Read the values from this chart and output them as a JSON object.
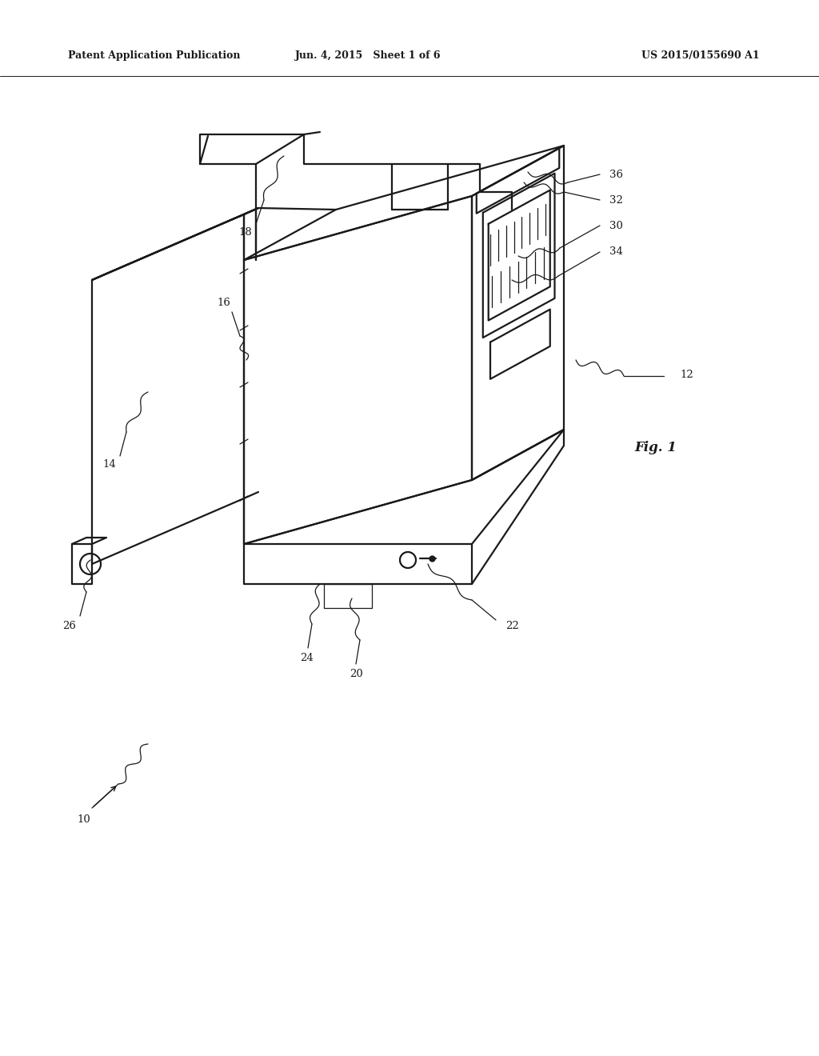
{
  "background_color": "#ffffff",
  "line_color": "#1a1a1a",
  "lw_main": 1.6,
  "lw_thin": 0.9,
  "header_left": "Patent Application Publication",
  "header_center": "Jun. 4, 2015   Sheet 1 of 6",
  "header_right": "US 2015/0155690 A1",
  "fig_label": "Fig. 1",
  "label_fontsize": 9.5,
  "header_fontsize": 9.0
}
